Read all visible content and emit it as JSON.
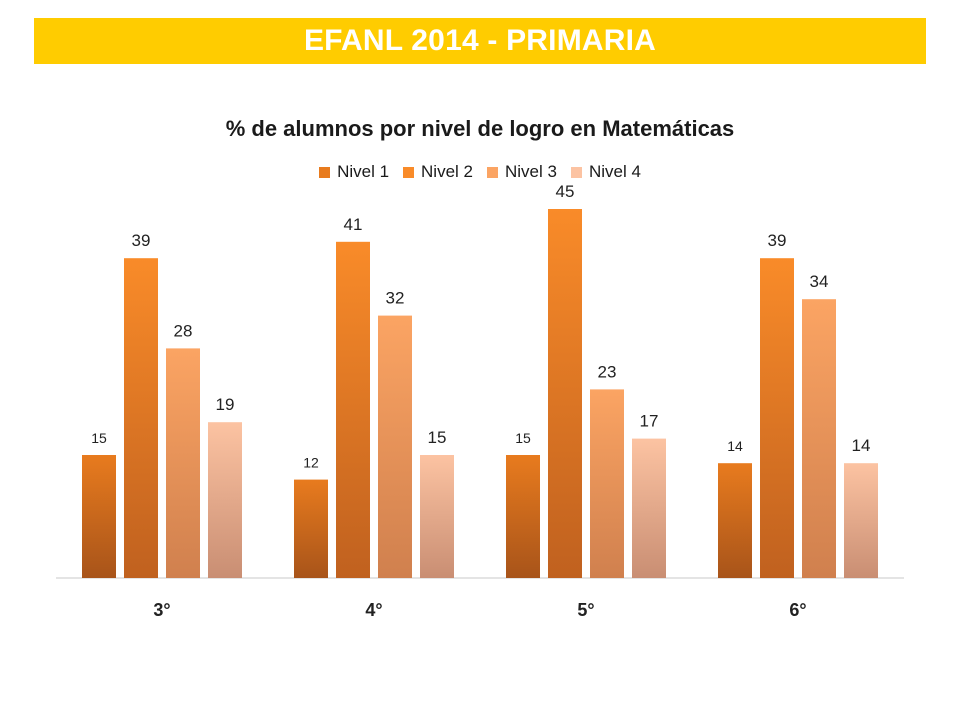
{
  "banner": {
    "title": "EFANL 2014 - PRIMARIA",
    "color": "#ffcc00"
  },
  "chart_data": {
    "type": "bar",
    "title": "% de alumnos por nivel de logro en Matemáticas",
    "categories": [
      "3°",
      "4°",
      "5°",
      "6°"
    ],
    "series": [
      {
        "name": "Nivel 1",
        "values": [
          15,
          12,
          15,
          14
        ],
        "color_top": "#e87b1e",
        "color_bottom": "#a8541a"
      },
      {
        "name": "Nivel 2",
        "values": [
          39,
          41,
          45,
          39
        ],
        "color_top": "#f98b29",
        "color_bottom": "#c0611f"
      },
      {
        "name": "Nivel 3",
        "values": [
          28,
          32,
          23,
          34
        ],
        "color_top": "#fba463",
        "color_bottom": "#d0804e"
      },
      {
        "name": "Nivel 4",
        "values": [
          19,
          15,
          17,
          14
        ],
        "color_top": "#fcc3a2",
        "color_bottom": "#c98e73"
      }
    ],
    "ylim": [
      0,
      50
    ],
    "xlabel": "",
    "ylabel": "",
    "grid": false,
    "legend_position": "top"
  }
}
